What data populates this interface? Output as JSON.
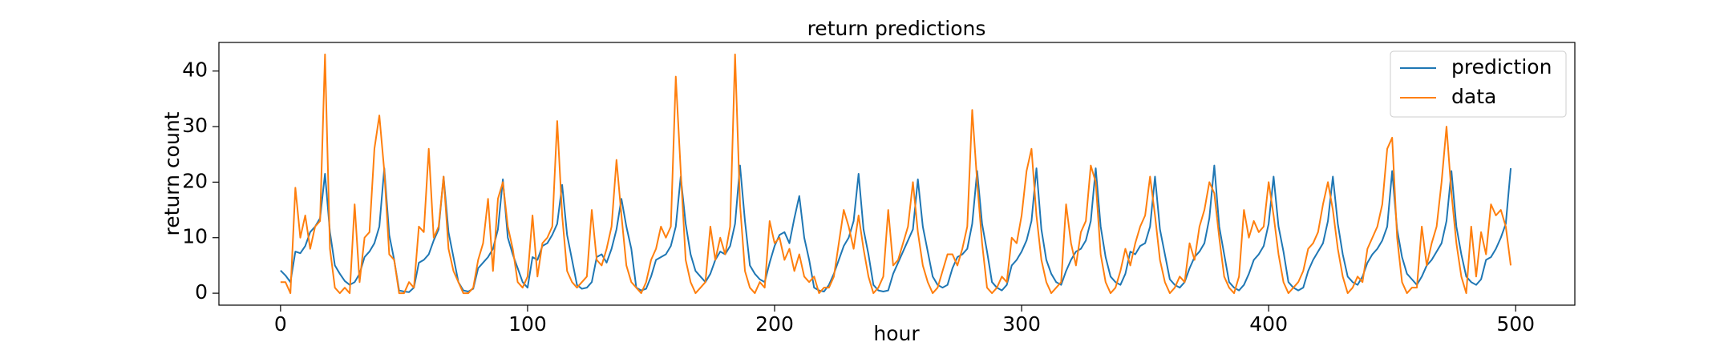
{
  "chart_data": {
    "type": "line",
    "title": "return predictions",
    "x_label": "hour",
    "y_label": "return count",
    "x": [
      0,
      2,
      4,
      6,
      8,
      10,
      12,
      14,
      16,
      18,
      20,
      22,
      24,
      26,
      28,
      30,
      32,
      34,
      36,
      38,
      40,
      42,
      44,
      46,
      48,
      50,
      52,
      54,
      56,
      58,
      60,
      62,
      64,
      66,
      68,
      70,
      72,
      74,
      76,
      78,
      80,
      82,
      84,
      86,
      88,
      90,
      92,
      94,
      96,
      98,
      100,
      102,
      104,
      106,
      108,
      110,
      112,
      114,
      116,
      118,
      120,
      122,
      124,
      126,
      128,
      130,
      132,
      134,
      136,
      138,
      140,
      142,
      144,
      146,
      148,
      150,
      152,
      154,
      156,
      158,
      160,
      162,
      164,
      166,
      168,
      170,
      172,
      174,
      176,
      178,
      180,
      182,
      184,
      186,
      188,
      190,
      192,
      194,
      196,
      198,
      200,
      202,
      204,
      206,
      208,
      210,
      212,
      214,
      216,
      218,
      220,
      222,
      224,
      226,
      228,
      230,
      232,
      234,
      236,
      238,
      240,
      242,
      244,
      246,
      248,
      250,
      252,
      254,
      256,
      258,
      260,
      262,
      264,
      266,
      268,
      270,
      272,
      274,
      276,
      278,
      280,
      282,
      284,
      286,
      288,
      290,
      292,
      294,
      296,
      298,
      300,
      302,
      304,
      306,
      308,
      310,
      312,
      314,
      316,
      318,
      320,
      322,
      324,
      326,
      328,
      330,
      332,
      334,
      336,
      338,
      340,
      342,
      344,
      346,
      348,
      350,
      352,
      354,
      356,
      358,
      360,
      362,
      364,
      366,
      368,
      370,
      372,
      374,
      376,
      378,
      380,
      382,
      384,
      386,
      388,
      390,
      392,
      394,
      396,
      398,
      400,
      402,
      404,
      406,
      408,
      410,
      412,
      414,
      416,
      418,
      420,
      422,
      424,
      426,
      428,
      430,
      432,
      434,
      436,
      438,
      440,
      442,
      444,
      446,
      448,
      450,
      452,
      454,
      456,
      458,
      460,
      462,
      464,
      466,
      468,
      470,
      472,
      474,
      476,
      478,
      480,
      482,
      484,
      486,
      488,
      490,
      492,
      494,
      496,
      498
    ],
    "series": [
      {
        "name": "prediction",
        "color": "#1f77b4",
        "values": [
          4.1,
          3.2,
          2.0,
          7.5,
          7.2,
          8.5,
          11.0,
          12.0,
          13.5,
          21.5,
          11.0,
          5.0,
          3.5,
          2.2,
          1.5,
          2.0,
          3.5,
          6.5,
          7.5,
          9.0,
          12.0,
          22.5,
          10.5,
          6.0,
          0.5,
          0.3,
          0.2,
          1.0,
          5.5,
          6.0,
          7.0,
          9.5,
          11.5,
          21.0,
          11.0,
          6.5,
          2.0,
          0.5,
          0.3,
          0.8,
          4.5,
          5.5,
          6.5,
          8.0,
          11.5,
          20.5,
          10.0,
          7.0,
          4.5,
          2.0,
          1.0,
          6.5,
          6.0,
          8.5,
          9.0,
          10.5,
          12.5,
          19.5,
          10.5,
          6.0,
          1.5,
          0.8,
          1.0,
          2.0,
          6.5,
          7.0,
          5.5,
          8.0,
          11.5,
          17.0,
          12.0,
          8.0,
          1.0,
          0.5,
          0.8,
          3.0,
          6.0,
          6.5,
          7.0,
          8.5,
          12.0,
          21.0,
          12.5,
          7.0,
          4.0,
          3.0,
          2.0,
          3.5,
          6.0,
          7.5,
          7.0,
          8.5,
          12.5,
          23.0,
          13.0,
          5.0,
          3.5,
          2.5,
          2.0,
          5.5,
          8.5,
          10.5,
          11.0,
          9.0,
          13.5,
          17.5,
          10.0,
          6.0,
          1.0,
          0.5,
          0.3,
          1.5,
          3.5,
          6.0,
          8.5,
          10.0,
          13.0,
          21.5,
          11.5,
          7.0,
          1.5,
          0.5,
          0.3,
          0.5,
          3.5,
          5.5,
          7.5,
          9.5,
          11.5,
          20.5,
          12.0,
          7.5,
          3.0,
          1.5,
          1.0,
          1.5,
          4.5,
          6.5,
          7.0,
          8.0,
          12.5,
          22.0,
          12.5,
          7.5,
          2.0,
          1.0,
          0.5,
          1.5,
          5.0,
          6.0,
          7.5,
          9.5,
          13.0,
          22.5,
          11.5,
          6.0,
          3.5,
          2.0,
          1.5,
          4.0,
          6.0,
          7.5,
          8.0,
          9.5,
          13.0,
          22.5,
          12.0,
          6.5,
          3.0,
          2.0,
          1.5,
          3.5,
          7.5,
          7.0,
          8.5,
          9.0,
          12.0,
          21.0,
          11.5,
          7.0,
          2.5,
          1.5,
          1.0,
          2.0,
          4.5,
          6.5,
          7.5,
          9.0,
          13.5,
          23.0,
          12.0,
          7.0,
          2.0,
          1.0,
          0.5,
          1.5,
          3.5,
          6.0,
          7.0,
          8.5,
          12.5,
          21.0,
          12.0,
          7.5,
          2.0,
          1.0,
          0.5,
          1.0,
          4.0,
          6.0,
          7.5,
          9.0,
          13.0,
          21.0,
          12.5,
          7.0,
          3.0,
          2.0,
          1.5,
          3.0,
          5.5,
          7.0,
          8.0,
          9.5,
          12.0,
          22.0,
          11.5,
          6.5,
          3.5,
          2.5,
          1.5,
          3.0,
          5.0,
          6.0,
          7.5,
          9.0,
          13.0,
          22.0,
          12.0,
          7.0,
          3.0,
          2.0,
          1.5,
          2.5,
          6.0,
          6.5,
          8.0,
          10.0,
          12.5,
          22.5
        ]
      },
      {
        "name": "data",
        "color": "#ff7f0e",
        "values": [
          2,
          2,
          0,
          19,
          10,
          14,
          8,
          12,
          13,
          43,
          8,
          1,
          0,
          1,
          0,
          16,
          2,
          10,
          11,
          26,
          32,
          22,
          7,
          6,
          0,
          0,
          2,
          1,
          12,
          11,
          26,
          10,
          12,
          21,
          8,
          4,
          2,
          0,
          0,
          1,
          6,
          9,
          17,
          4,
          17,
          20,
          12,
          8,
          2,
          1,
          3,
          14,
          3,
          9,
          10,
          12,
          31,
          14,
          4,
          2,
          1,
          2,
          3,
          15,
          6,
          5,
          8,
          12,
          24,
          14,
          5,
          2,
          1,
          0,
          2,
          6,
          8,
          12,
          10,
          12,
          39,
          22,
          6,
          2,
          0,
          1,
          2,
          12,
          6,
          10,
          7,
          12,
          43,
          16,
          4,
          1,
          0,
          2,
          1,
          13,
          9,
          10,
          6,
          8,
          4,
          7,
          3,
          2,
          3,
          0,
          1,
          1,
          3,
          9,
          15,
          12,
          8,
          14,
          8,
          3,
          0,
          1,
          3,
          15,
          5,
          6,
          9,
          12,
          20,
          11,
          5,
          2,
          0,
          1,
          4,
          7,
          7,
          5,
          8,
          12,
          33,
          20,
          9,
          1,
          0,
          1,
          3,
          2,
          10,
          9,
          14,
          22,
          26,
          14,
          6,
          2,
          0,
          1,
          2,
          16,
          9,
          5,
          11,
          13,
          23,
          20,
          7,
          2,
          0,
          1,
          4,
          8,
          5,
          9,
          12,
          14,
          21,
          14,
          6,
          2,
          0,
          1,
          3,
          2,
          9,
          6,
          12,
          15,
          20,
          18,
          10,
          3,
          1,
          0,
          3,
          15,
          10,
          13,
          11,
          12,
          20,
          14,
          7,
          2,
          0,
          1,
          2,
          4,
          8,
          9,
          11,
          16,
          20,
          15,
          8,
          3,
          0,
          1,
          3,
          2,
          8,
          10,
          12,
          16,
          26,
          28,
          10,
          2,
          0,
          1,
          1,
          12,
          5,
          9,
          12,
          20,
          30,
          18,
          9,
          3,
          0,
          12,
          3,
          11,
          7,
          16,
          14,
          15,
          12,
          5
        ]
      }
    ],
    "xlim": [
      -24.95,
      523.95
    ],
    "xticks": [
      0,
      100,
      200,
      300,
      400,
      500
    ],
    "ylim": [
      -2.15,
      45.15
    ],
    "yticks": [
      0,
      10,
      20,
      30,
      40
    ],
    "legend": "upper right"
  }
}
